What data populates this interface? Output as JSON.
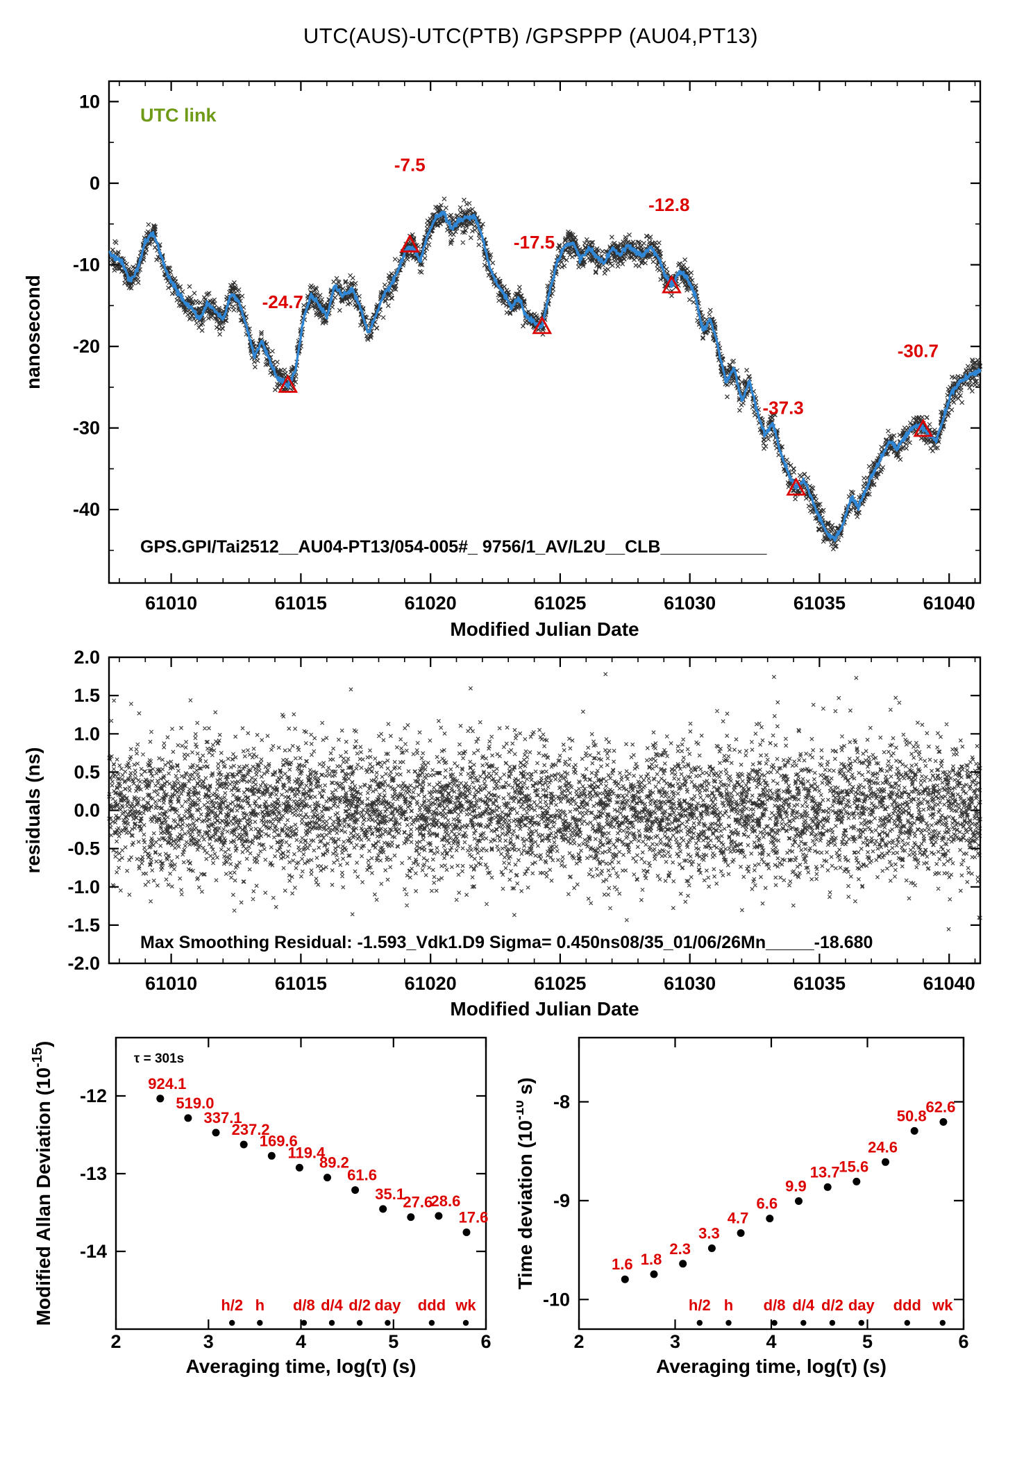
{
  "title": "UTC(AUS)-UTC(PTB)  /GPSPPP  (AU04,PT13)",
  "colors": {
    "accent_blue": "#2e86d5",
    "marker_red": "#dd0000",
    "utc_green": "#6f9a18",
    "scatter_black": "#111111"
  },
  "chart_data": [
    {
      "id": "phase",
      "type": "line",
      "title": "UTC(AUS)-UTC(PTB)  /GPSPPP  (AU04,PT13)",
      "xlabel": "Modified Julian Date",
      "ylabel": "nanosecond",
      "xlim": [
        61007.6,
        61041.2
      ],
      "ylim": [
        -49,
        12.5
      ],
      "xticks": [
        61010,
        61015,
        61020,
        61025,
        61030,
        61035,
        61040
      ],
      "xtick_labels": [
        "61010",
        "61015",
        "61020",
        "61025",
        "61030",
        "61035",
        "61040"
      ],
      "yticks": [
        10,
        0,
        -10,
        -20,
        -30,
        -40
      ],
      "ytick_labels": [
        "10",
        "0",
        "-10",
        "-20",
        "-30",
        "-40"
      ],
      "xminor_step": 1,
      "yminor_step": 5,
      "corner_label": "UTC link",
      "footer_annotation": "GPS.GPI/Tai2512__AU04-PT13/054-005#_  9756/1_AV/L2U__CLB___________",
      "noise_sigma": 0.75,
      "n_scatter": 3000,
      "markers": [
        {
          "x": 61014.5,
          "y": -24.8,
          "label": "-24.7",
          "label_x": 61014.3,
          "label_y": -15.3
        },
        {
          "x": 61019.2,
          "y": -7.6,
          "label": "-7.5",
          "label_x": 61019.2,
          "label_y": 1.5
        },
        {
          "x": 61024.3,
          "y": -17.6,
          "label": "-17.5",
          "label_x": 61024.0,
          "label_y": -8.0
        },
        {
          "x": 61029.3,
          "y": -12.6,
          "label": "-12.8",
          "label_x": 61029.2,
          "label_y": -3.4
        },
        {
          "x": 61034.1,
          "y": -37.4,
          "label": "-37.3",
          "label_x": 61033.6,
          "label_y": -28.3
        },
        {
          "x": 61039.0,
          "y": -30.2,
          "label": "-30.7",
          "label_x": 61038.8,
          "label_y": -21.3
        }
      ],
      "line_anchors": [
        [
          61006.9,
          -7.5
        ],
        [
          61007.2,
          -8.8
        ],
        [
          61007.5,
          -8.0
        ],
        [
          61007.8,
          -9.2
        ],
        [
          61008.1,
          -9.6
        ],
        [
          61008.4,
          -12.0
        ],
        [
          61008.7,
          -10.6
        ],
        [
          61009.0,
          -7.2
        ],
        [
          61009.3,
          -6.0
        ],
        [
          61009.6,
          -8.8
        ],
        [
          61009.9,
          -11.5
        ],
        [
          61010.2,
          -13.0
        ],
        [
          61010.5,
          -14.6
        ],
        [
          61010.8,
          -15.4
        ],
        [
          61011.1,
          -16.6
        ],
        [
          61011.4,
          -14.8
        ],
        [
          61011.7,
          -15.6
        ],
        [
          61012.0,
          -16.8
        ],
        [
          61012.3,
          -13.6
        ],
        [
          61012.6,
          -14.4
        ],
        [
          61012.9,
          -17.5
        ],
        [
          61013.2,
          -21.2
        ],
        [
          61013.5,
          -19.4
        ],
        [
          61013.8,
          -21.8
        ],
        [
          61014.1,
          -23.8
        ],
        [
          61014.5,
          -24.8
        ],
        [
          61014.8,
          -22.8
        ],
        [
          61015.1,
          -16.6
        ],
        [
          61015.4,
          -13.6
        ],
        [
          61015.7,
          -15.0
        ],
        [
          61016.0,
          -16.4
        ],
        [
          61016.3,
          -12.6
        ],
        [
          61016.6,
          -13.8
        ],
        [
          61017.0,
          -13.0
        ],
        [
          61017.3,
          -15.4
        ],
        [
          61017.6,
          -18.4
        ],
        [
          61017.9,
          -16.2
        ],
        [
          61018.2,
          -13.6
        ],
        [
          61018.5,
          -12.4
        ],
        [
          61018.8,
          -10.2
        ],
        [
          61019.1,
          -7.8
        ],
        [
          61019.4,
          -8.2
        ],
        [
          61019.6,
          -9.6
        ],
        [
          61019.9,
          -6.2
        ],
        [
          61020.2,
          -4.2
        ],
        [
          61020.5,
          -3.6
        ],
        [
          61020.8,
          -5.6
        ],
        [
          61021.1,
          -4.6
        ],
        [
          61021.4,
          -4.2
        ],
        [
          61021.7,
          -4.0
        ],
        [
          61022.0,
          -6.6
        ],
        [
          61022.3,
          -10.6
        ],
        [
          61022.6,
          -12.6
        ],
        [
          61022.9,
          -13.8
        ],
        [
          61023.1,
          -15.4
        ],
        [
          61023.4,
          -14.0
        ],
        [
          61023.7,
          -16.4
        ],
        [
          61024.0,
          -17.0
        ],
        [
          61024.3,
          -17.6
        ],
        [
          61024.6,
          -13.2
        ],
        [
          61024.9,
          -9.6
        ],
        [
          61025.2,
          -7.6
        ],
        [
          61025.5,
          -7.2
        ],
        [
          61025.8,
          -9.4
        ],
        [
          61026.1,
          -8.0
        ],
        [
          61026.4,
          -9.0
        ],
        [
          61026.7,
          -9.8
        ],
        [
          61027.0,
          -8.0
        ],
        [
          61027.3,
          -8.8
        ],
        [
          61027.6,
          -7.6
        ],
        [
          61027.9,
          -8.4
        ],
        [
          61028.2,
          -8.8
        ],
        [
          61028.5,
          -7.8
        ],
        [
          61028.8,
          -9.2
        ],
        [
          61029.1,
          -11.6
        ],
        [
          61029.3,
          -12.6
        ],
        [
          61029.6,
          -10.8
        ],
        [
          61029.9,
          -11.6
        ],
        [
          61030.2,
          -13.6
        ],
        [
          61030.5,
          -18.0
        ],
        [
          61030.8,
          -16.6
        ],
        [
          61031.1,
          -20.2
        ],
        [
          61031.4,
          -24.4
        ],
        [
          61031.7,
          -22.6
        ],
        [
          61032.0,
          -26.6
        ],
        [
          61032.3,
          -24.2
        ],
        [
          61032.6,
          -28.0
        ],
        [
          61032.9,
          -31.0
        ],
        [
          61033.2,
          -29.4
        ],
        [
          61033.5,
          -33.0
        ],
        [
          61033.8,
          -35.6
        ],
        [
          61034.1,
          -37.4
        ],
        [
          61034.4,
          -36.4
        ],
        [
          61034.7,
          -38.6
        ],
        [
          61035.0,
          -41.0
        ],
        [
          61035.3,
          -43.0
        ],
        [
          61035.6,
          -43.6
        ],
        [
          61035.9,
          -42.0
        ],
        [
          61036.2,
          -38.6
        ],
        [
          61036.5,
          -39.6
        ],
        [
          61036.8,
          -37.6
        ],
        [
          61037.1,
          -35.4
        ],
        [
          61037.4,
          -33.6
        ],
        [
          61037.7,
          -31.6
        ],
        [
          61038.0,
          -32.6
        ],
        [
          61038.3,
          -31.0
        ],
        [
          61038.6,
          -30.0
        ],
        [
          61038.9,
          -29.6
        ],
        [
          61039.2,
          -30.6
        ],
        [
          61039.5,
          -31.6
        ],
        [
          61039.8,
          -28.6
        ],
        [
          61040.1,
          -25.6
        ],
        [
          61040.4,
          -24.4
        ],
        [
          61040.7,
          -23.8
        ],
        [
          61041.0,
          -23.2
        ],
        [
          61041.3,
          -22.8
        ]
      ]
    },
    {
      "id": "residuals",
      "type": "scatter",
      "xlabel": "Modified Julian Date",
      "ylabel": "residuals (ns)",
      "xlim": [
        61007.6,
        61041.2
      ],
      "ylim": [
        -2.0,
        2.0
      ],
      "xticks": [
        61010,
        61015,
        61020,
        61025,
        61030,
        61035,
        61040
      ],
      "xtick_labels": [
        "61010",
        "61015",
        "61020",
        "61025",
        "61030",
        "61035",
        "61040"
      ],
      "yticks": [
        2.0,
        1.5,
        1.0,
        0.5,
        0.0,
        -0.5,
        -1.0,
        -1.5,
        -2.0
      ],
      "ytick_labels": [
        "2.0",
        "1.5",
        "1.0",
        "0.5",
        "0.0",
        "-0.5",
        "-1.0",
        "-1.5",
        "-2.0"
      ],
      "xminor_step": 1,
      "yminor_step": 0,
      "sigma_ns": 0.45,
      "n_points": 6200,
      "annotation": "Max Smoothing Residual: -1.593_Vdk1.D9  Sigma= 0.450ns08/35_01/06/26Mn_____-18.680"
    },
    {
      "id": "mdev",
      "type": "scatter",
      "xlabel": "Averaging time, log(τ) (s)",
      "ylabel_parts": {
        "pre": "Modified Allan Deviation (10",
        "sup": "-15",
        "post": ")"
      },
      "xlim": [
        2.0,
        6.0
      ],
      "ylim": [
        -15.0,
        -11.25
      ],
      "xticks": [
        2,
        3,
        4,
        5,
        6
      ],
      "xtick_labels": [
        "2",
        "3",
        "4",
        "5",
        "6"
      ],
      "yticks": [
        -12,
        -13,
        -14
      ],
      "ytick_labels": [
        "-12",
        "-13",
        "-14"
      ],
      "xminor_step": 0,
      "yminor_step": 0,
      "exp_offset": -15,
      "tau_note": "τ = 301s",
      "x": [
        2.479,
        2.78,
        3.081,
        3.382,
        3.683,
        3.984,
        4.285,
        4.586,
        4.887,
        5.188,
        5.489,
        5.79
      ],
      "values": [
        924.1,
        519.0,
        337.1,
        237.2,
        169.6,
        119.4,
        89.2,
        61.6,
        35.1,
        27.6,
        28.6,
        17.6
      ],
      "value_labels": [
        "924.1",
        "519.0",
        "337.1",
        "237.2",
        "169.6",
        "119.4",
        "89.2",
        "61.6",
        "35.1",
        "27.6",
        "28.6",
        "17.6"
      ],
      "tau_marks": [
        {
          "label": "h/2",
          "x": 3.255
        },
        {
          "label": "h",
          "x": 3.556
        },
        {
          "label": "d/8",
          "x": 4.033
        },
        {
          "label": "d/4",
          "x": 4.334
        },
        {
          "label": "d/2",
          "x": 4.635
        },
        {
          "label": "day",
          "x": 4.937
        },
        {
          "label": "ddd",
          "x": 5.414
        },
        {
          "label": "wk",
          "x": 5.782
        }
      ]
    },
    {
      "id": "tdev",
      "type": "scatter",
      "xlabel": "Averaging time, log(τ) (s)",
      "ylabel_parts": {
        "pre": "Time deviation (10",
        "sup": "-10",
        "post": " s)"
      },
      "xlim": [
        2.0,
        6.0
      ],
      "ylim": [
        -10.3,
        -7.35
      ],
      "xticks": [
        2,
        3,
        4,
        5,
        6
      ],
      "xtick_labels": [
        "2",
        "3",
        "4",
        "5",
        "6"
      ],
      "yticks": [
        -8,
        -9,
        -10
      ],
      "ytick_labels": [
        "-8",
        "-9",
        "-10"
      ],
      "xminor_step": 0,
      "yminor_step": 0,
      "exp_offset": -10,
      "x": [
        2.479,
        2.78,
        3.081,
        3.382,
        3.683,
        3.984,
        4.285,
        4.586,
        4.887,
        5.188,
        5.489,
        5.79
      ],
      "values": [
        1.6,
        1.8,
        2.3,
        3.3,
        4.7,
        6.6,
        9.9,
        13.7,
        15.6,
        24.6,
        50.8,
        62.6
      ],
      "value_labels": [
        "1.6",
        "1.8",
        "2.3",
        "3.3",
        "4.7",
        "6.6",
        "9.9",
        "13.7",
        "15.6",
        "24.6",
        "50.8",
        "62.6"
      ],
      "tau_marks": [
        {
          "label": "h/2",
          "x": 3.255
        },
        {
          "label": "h",
          "x": 3.556
        },
        {
          "label": "d/8",
          "x": 4.033
        },
        {
          "label": "d/4",
          "x": 4.334
        },
        {
          "label": "d/2",
          "x": 4.635
        },
        {
          "label": "day",
          "x": 4.937
        },
        {
          "label": "ddd",
          "x": 5.414
        },
        {
          "label": "wk",
          "x": 5.782
        }
      ]
    }
  ]
}
